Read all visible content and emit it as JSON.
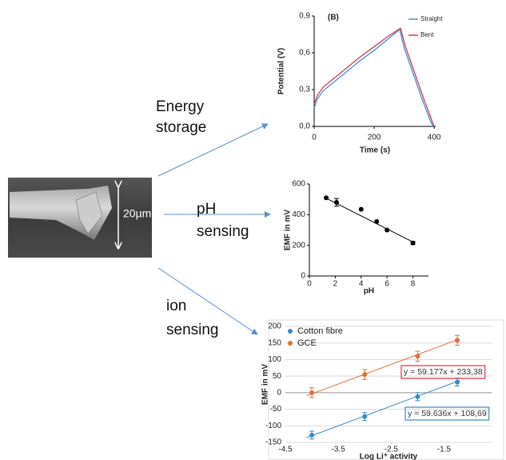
{
  "labels": {
    "energy": [
      "Energy",
      "storage"
    ],
    "ph": [
      "pH",
      "sensing"
    ],
    "ion": [
      "ion",
      "sensing"
    ],
    "scale_bar": "20µm"
  },
  "chart_data": [
    {
      "type": "line",
      "title": "(B)",
      "x_label": "Time (s)",
      "y_label": "Potential (V)",
      "xlim": [
        0,
        405
      ],
      "xticks": [
        0,
        200,
        400
      ],
      "ylim": [
        0,
        0.9
      ],
      "yticks": [
        {
          "value": 0,
          "label": "0,0"
        },
        {
          "value": 0.3,
          "label": "0,3"
        },
        {
          "value": 0.6,
          "label": "0,6"
        },
        {
          "value": 0.9,
          "label": "0,9"
        }
      ],
      "legend": "upper right",
      "series": [
        {
          "name": "Straight",
          "color": "#4a8fc4",
          "x": [
            0,
            10,
            30,
            60,
            100,
            150,
            200,
            250,
            285,
            300,
            330,
            360,
            390,
            398
          ],
          "values": [
            0.15,
            0.22,
            0.29,
            0.35,
            0.43,
            0.53,
            0.62,
            0.72,
            0.79,
            0.64,
            0.43,
            0.22,
            0.03,
            0
          ]
        },
        {
          "name": "Bent",
          "color": "#c0405a",
          "x": [
            0,
            10,
            30,
            60,
            100,
            150,
            200,
            250,
            288,
            303,
            333,
            363,
            392,
            400
          ],
          "values": [
            0.18,
            0.25,
            0.32,
            0.38,
            0.46,
            0.56,
            0.65,
            0.74,
            0.8,
            0.66,
            0.45,
            0.24,
            0.05,
            0
          ]
        }
      ]
    },
    {
      "type": "scatter",
      "x_label": "pH",
      "y_label": "EMF in mV",
      "xlim": [
        0,
        9.2
      ],
      "xticks": [
        0,
        2,
        4,
        6,
        8
      ],
      "ylim": [
        0,
        600
      ],
      "yticks": [
        0,
        200,
        400,
        600
      ],
      "series": [
        {
          "color": "#000000",
          "x": [
            1.3,
            2.1,
            4,
            5.2,
            6,
            8
          ],
          "values": [
            510,
            480,
            435,
            355,
            300,
            215
          ],
          "errors": [
            null,
            25,
            null,
            null,
            null,
            10
          ],
          "trend": {
            "x": [
              1.3,
              8
            ],
            "y": [
              507,
              222
            ]
          }
        }
      ]
    },
    {
      "type": "scatter",
      "x_label": "Log Li⁺ activity",
      "y_label": "EMF in mV",
      "xlim": [
        -4.5,
        -0.6
      ],
      "xticks": [
        -4.5,
        -3.5,
        -2.5,
        -1.5
      ],
      "ylim": [
        -150,
        200
      ],
      "yticks": [
        -150,
        -100,
        -50,
        0,
        50,
        100,
        150,
        200
      ],
      "grid": true,
      "legend": "upper left",
      "series": [
        {
          "name": "Cotton fibre",
          "color": "#3a8ac8",
          "x": [
            -4,
            -3,
            -2,
            -1.25
          ],
          "values": [
            -128,
            -72,
            -12,
            32
          ],
          "errors": [
            12,
            12,
            12,
            12
          ],
          "trend": {
            "x": [
              -4.1,
              -1.2
            ],
            "y": [
              -135.8,
              37.1
            ]
          }
        },
        {
          "name": "GCE",
          "color": "#e0703a",
          "x": [
            -4,
            -3,
            -2,
            -1.25
          ],
          "values": [
            0,
            55,
            110,
            158
          ],
          "errors": [
            15,
            15,
            15,
            15
          ],
          "trend": {
            "x": [
              -4.1,
              -1.2
            ],
            "y": [
              -9.3,
              162.4
            ]
          }
        }
      ],
      "annotations": [
        {
          "text": "y = 59.177x + 233,38",
          "color": "#e03040"
        },
        {
          "text": "y = 59.636x + 108,69",
          "color": "#3a8ac8"
        }
      ]
    }
  ]
}
